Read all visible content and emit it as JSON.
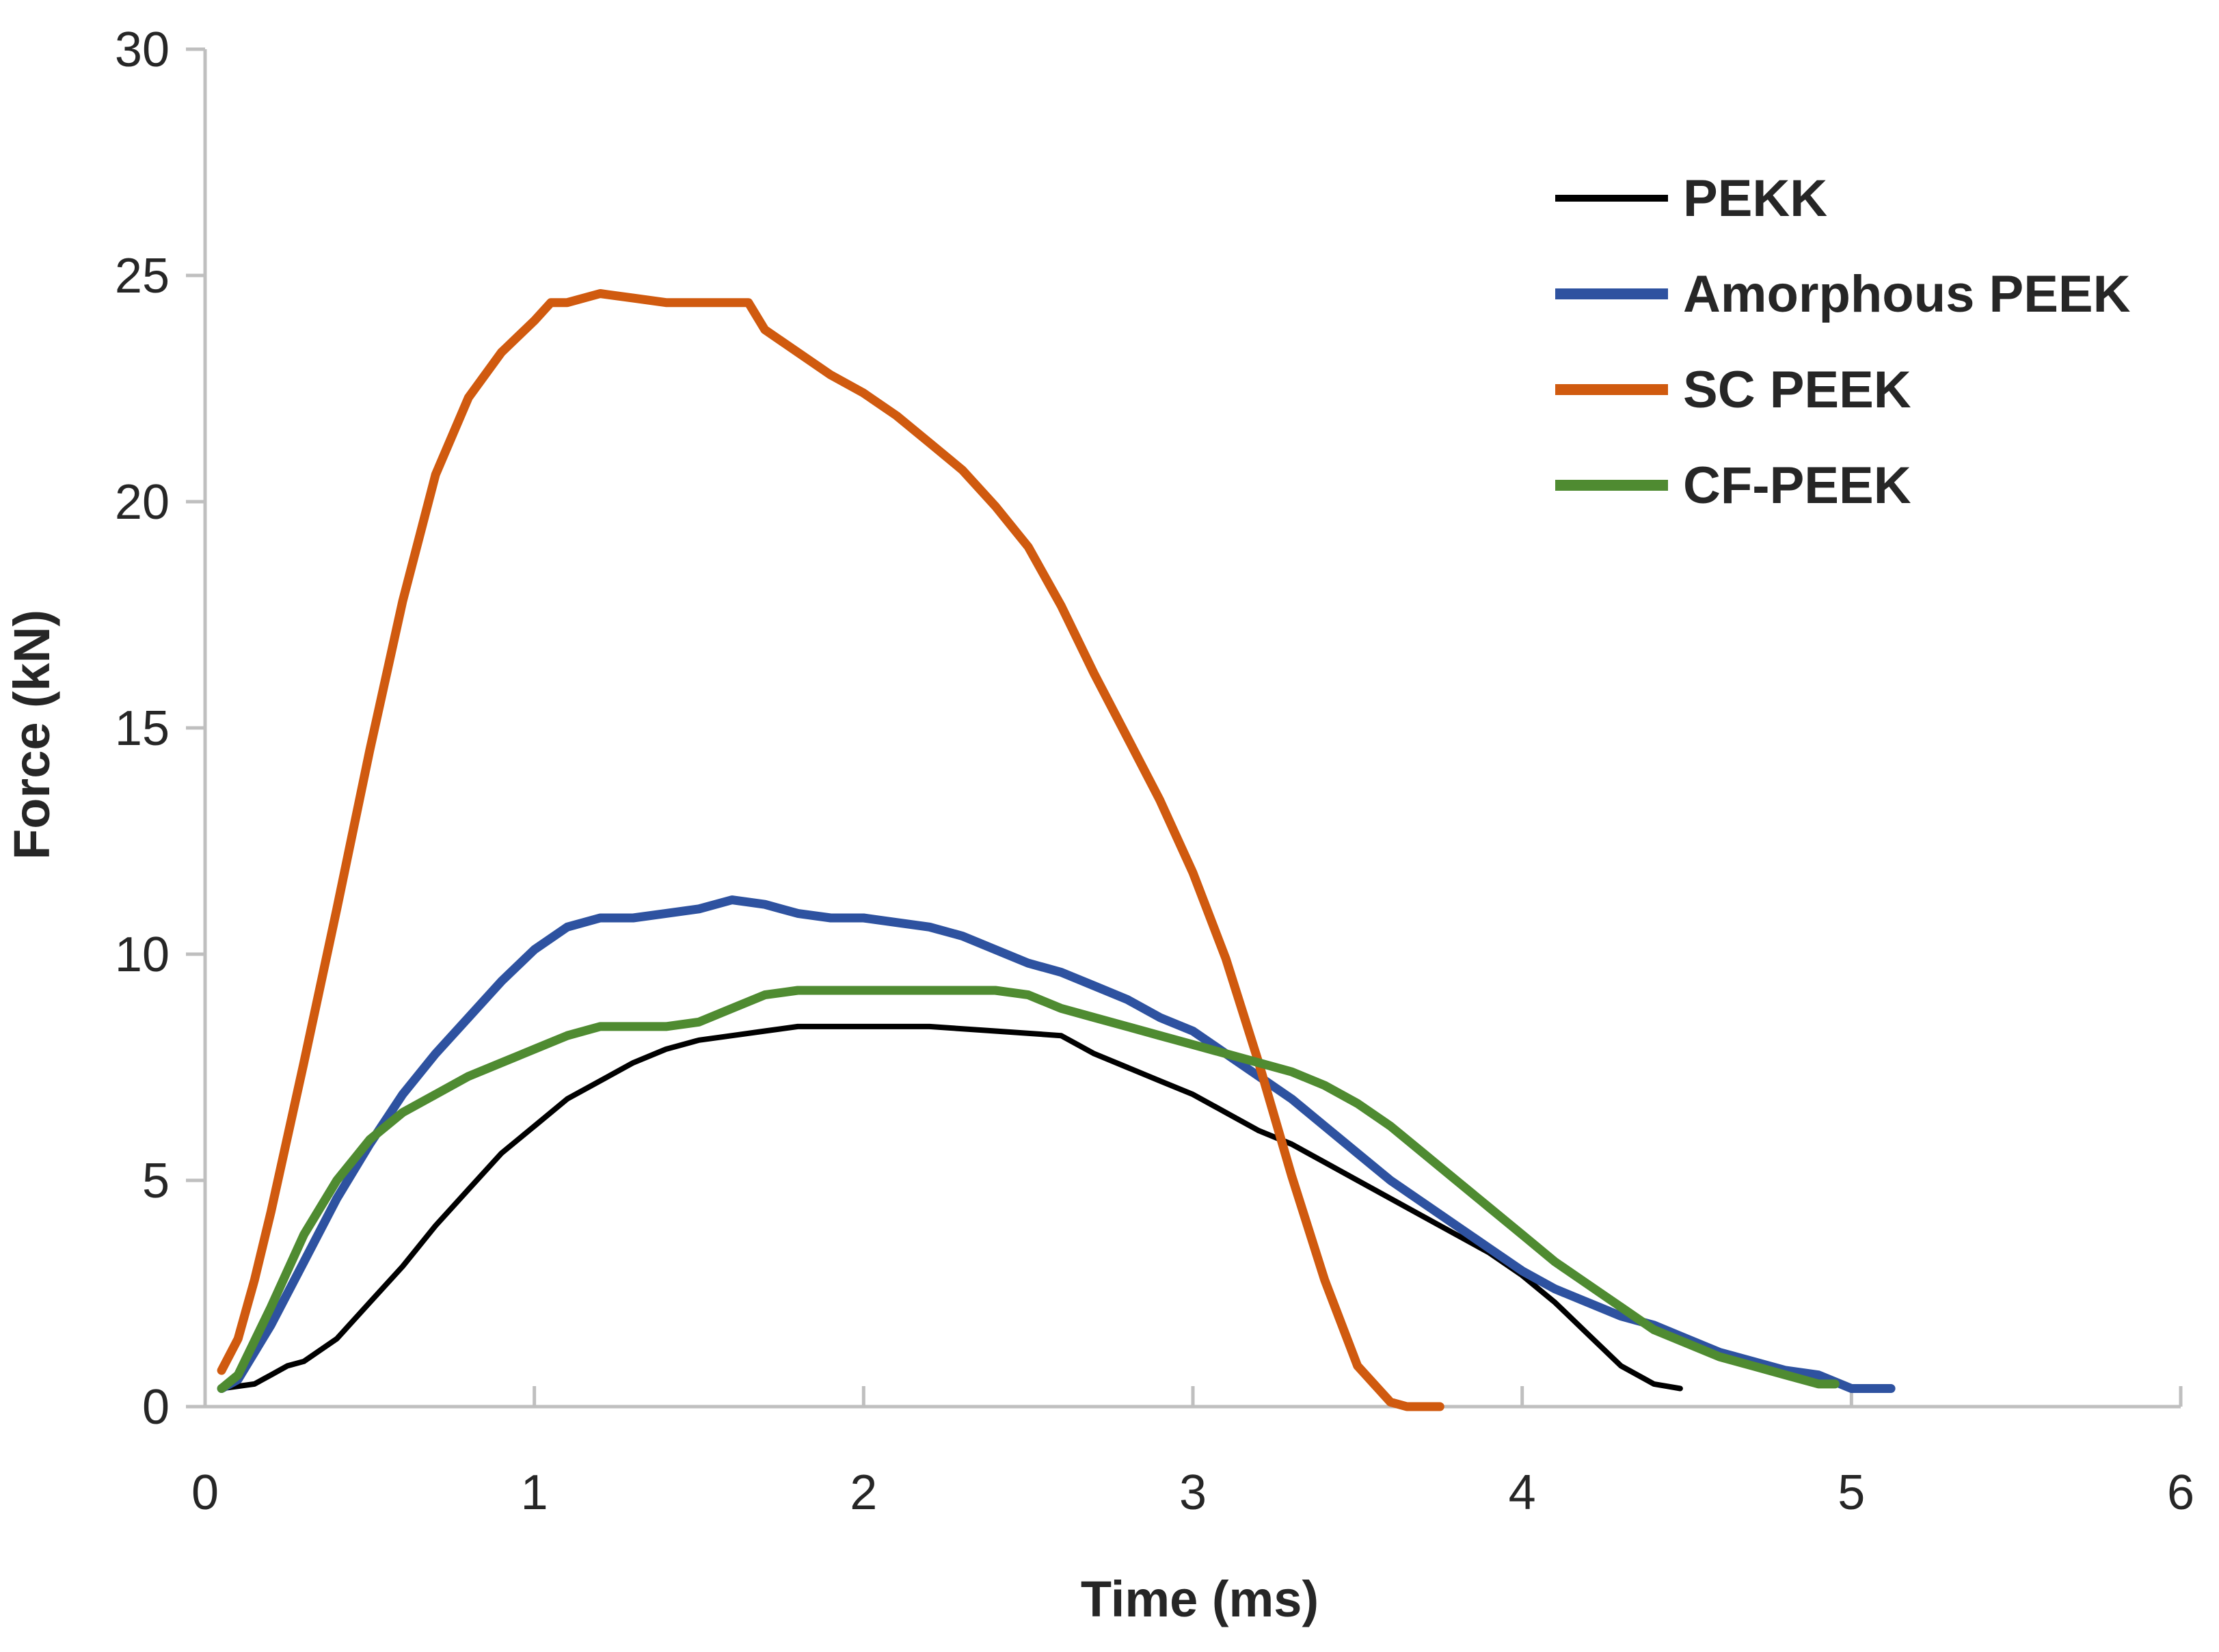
{
  "chart_data": {
    "type": "line",
    "title": "",
    "xlabel": "Time (ms)",
    "ylabel": "Force (kN)",
    "xlim": [
      0,
      6
    ],
    "ylim": [
      0,
      30
    ],
    "xticks": [
      "0",
      "1",
      "2",
      "3",
      "4",
      "5",
      "6"
    ],
    "yticks": [
      "0",
      "5",
      "10",
      "15",
      "20",
      "25",
      "30"
    ],
    "grid": false,
    "legend_position": "top-right",
    "series": [
      {
        "name": "PEKK",
        "color": "#000000",
        "x": [
          0.05,
          0.15,
          0.2,
          0.25,
          0.3,
          0.4,
          0.5,
          0.6,
          0.7,
          0.8,
          0.9,
          1.0,
          1.1,
          1.2,
          1.3,
          1.4,
          1.5,
          1.6,
          1.7,
          1.8,
          1.9,
          2.0,
          2.2,
          2.4,
          2.6,
          2.7,
          2.8,
          2.9,
          3.0,
          3.1,
          3.2,
          3.3,
          3.4,
          3.5,
          3.6,
          3.7,
          3.8,
          3.9,
          4.0,
          4.1,
          4.2,
          4.3,
          4.4,
          4.48
        ],
        "y": [
          0.4,
          0.5,
          0.7,
          0.9,
          1.0,
          1.5,
          2.3,
          3.1,
          4.0,
          4.8,
          5.6,
          6.2,
          6.8,
          7.2,
          7.6,
          7.9,
          8.1,
          8.2,
          8.3,
          8.4,
          8.4,
          8.4,
          8.4,
          8.3,
          8.2,
          7.8,
          7.5,
          7.2,
          6.9,
          6.5,
          6.1,
          5.8,
          5.4,
          5.0,
          4.6,
          4.2,
          3.8,
          3.4,
          2.9,
          2.3,
          1.6,
          0.9,
          0.5,
          0.4
        ]
      },
      {
        "name": "Amorphous PEEK",
        "color": "#2E52A0",
        "x": [
          0.05,
          0.1,
          0.2,
          0.3,
          0.4,
          0.5,
          0.6,
          0.7,
          0.8,
          0.9,
          1.0,
          1.1,
          1.2,
          1.3,
          1.4,
          1.5,
          1.6,
          1.7,
          1.8,
          1.9,
          2.0,
          2.1,
          2.2,
          2.3,
          2.4,
          2.5,
          2.6,
          2.7,
          2.8,
          2.9,
          3.0,
          3.1,
          3.2,
          3.3,
          3.4,
          3.5,
          3.6,
          3.7,
          3.8,
          3.9,
          4.0,
          4.1,
          4.2,
          4.3,
          4.4,
          4.5,
          4.6,
          4.7,
          4.8,
          4.9,
          5.0,
          5.12
        ],
        "y": [
          0.4,
          0.6,
          1.8,
          3.2,
          4.6,
          5.8,
          6.9,
          7.8,
          8.6,
          9.4,
          10.1,
          10.6,
          10.8,
          10.8,
          10.9,
          11.0,
          11.2,
          11.1,
          10.9,
          10.8,
          10.8,
          10.7,
          10.6,
          10.4,
          10.1,
          9.8,
          9.6,
          9.3,
          9.0,
          8.6,
          8.3,
          7.8,
          7.3,
          6.8,
          6.2,
          5.6,
          5.0,
          4.5,
          4.0,
          3.5,
          3.0,
          2.6,
          2.3,
          2.0,
          1.8,
          1.5,
          1.2,
          1.0,
          0.8,
          0.7,
          0.4,
          0.4
        ]
      },
      {
        "name": "SC PEEK",
        "color": "#D05A0F",
        "x": [
          0.05,
          0.1,
          0.15,
          0.2,
          0.3,
          0.4,
          0.5,
          0.6,
          0.7,
          0.8,
          0.9,
          1.0,
          1.05,
          1.1,
          1.2,
          1.3,
          1.4,
          1.5,
          1.6,
          1.65,
          1.7,
          1.8,
          1.9,
          2.0,
          2.1,
          2.2,
          2.3,
          2.4,
          2.5,
          2.6,
          2.7,
          2.8,
          2.9,
          3.0,
          3.1,
          3.2,
          3.3,
          3.4,
          3.5,
          3.6,
          3.65,
          3.7,
          3.75
        ],
        "y": [
          0.8,
          1.5,
          2.8,
          4.3,
          7.6,
          11.0,
          14.5,
          17.8,
          20.6,
          22.3,
          23.3,
          24.0,
          24.4,
          24.4,
          24.6,
          24.5,
          24.4,
          24.4,
          24.4,
          24.4,
          23.8,
          23.3,
          22.8,
          22.4,
          21.9,
          21.3,
          20.7,
          19.9,
          19.0,
          17.7,
          16.2,
          14.8,
          13.4,
          11.8,
          9.9,
          7.6,
          5.1,
          2.8,
          0.9,
          0.1,
          0.0,
          0.0,
          0.0
        ]
      },
      {
        "name": "CF-PEEK",
        "color": "#4F8B31",
        "x": [
          0.05,
          0.1,
          0.2,
          0.3,
          0.4,
          0.5,
          0.6,
          0.7,
          0.8,
          0.9,
          1.0,
          1.1,
          1.2,
          1.3,
          1.4,
          1.5,
          1.6,
          1.7,
          1.8,
          1.9,
          2.0,
          2.1,
          2.2,
          2.3,
          2.4,
          2.5,
          2.6,
          2.7,
          2.8,
          2.9,
          3.0,
          3.1,
          3.2,
          3.3,
          3.4,
          3.5,
          3.6,
          3.7,
          3.8,
          3.9,
          4.0,
          4.1,
          4.2,
          4.3,
          4.4,
          4.5,
          4.6,
          4.7,
          4.8,
          4.9,
          4.95
        ],
        "y": [
          0.4,
          0.7,
          2.2,
          3.8,
          5.0,
          5.9,
          6.5,
          6.9,
          7.3,
          7.6,
          7.9,
          8.2,
          8.4,
          8.4,
          8.4,
          8.5,
          8.8,
          9.1,
          9.2,
          9.2,
          9.2,
          9.2,
          9.2,
          9.2,
          9.2,
          9.1,
          8.8,
          8.6,
          8.4,
          8.2,
          8.0,
          7.8,
          7.6,
          7.4,
          7.1,
          6.7,
          6.2,
          5.6,
          5.0,
          4.4,
          3.8,
          3.2,
          2.7,
          2.2,
          1.7,
          1.4,
          1.1,
          0.9,
          0.7,
          0.5,
          0.5
        ]
      }
    ]
  }
}
